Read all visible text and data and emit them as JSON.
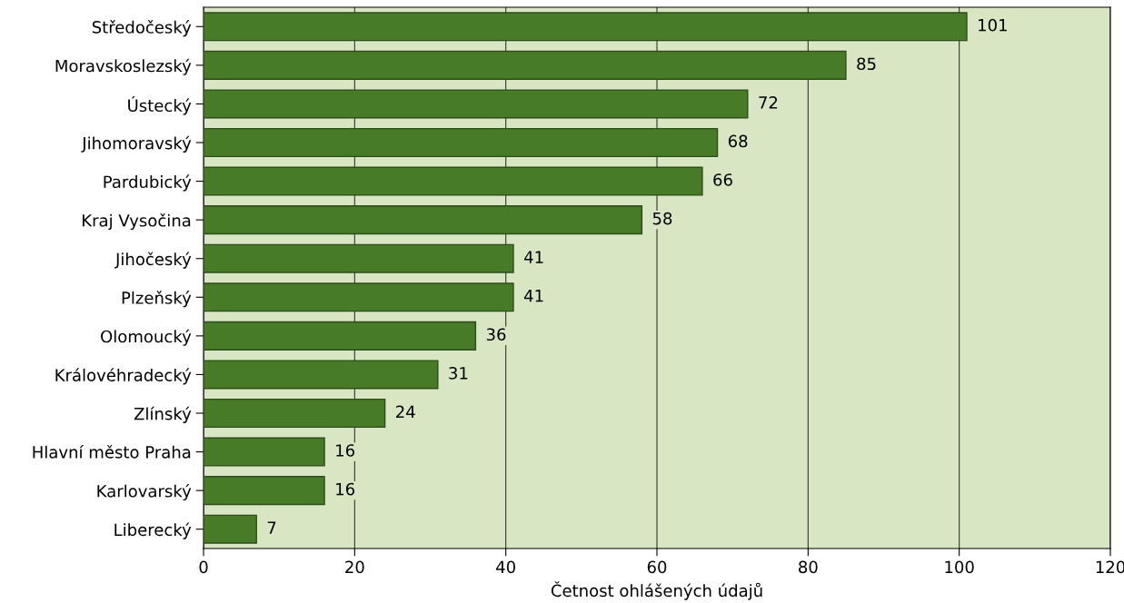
{
  "chart_data": {
    "type": "bar",
    "orientation": "horizontal",
    "xlabel": "Četnost ohlášených údajů",
    "categories": [
      "Středočeský",
      "Moravskoslezský",
      "Ústecký",
      "Jihomoravský",
      "Pardubický",
      "Kraj Vysočina",
      "Jihočeský",
      "Plzeňský",
      "Olomoucký",
      "Královéhradecký",
      "Zlínský",
      "Hlavní město Praha",
      "Karlovarský",
      "Liberecký"
    ],
    "values": [
      101,
      85,
      72,
      68,
      66,
      58,
      41,
      41,
      36,
      31,
      24,
      16,
      16,
      7
    ],
    "color": "#477b28",
    "data_labels": true,
    "xlim": [
      0,
      120
    ],
    "xticks": [
      0,
      20,
      40,
      60,
      80,
      100,
      120
    ],
    "grid": "x"
  }
}
